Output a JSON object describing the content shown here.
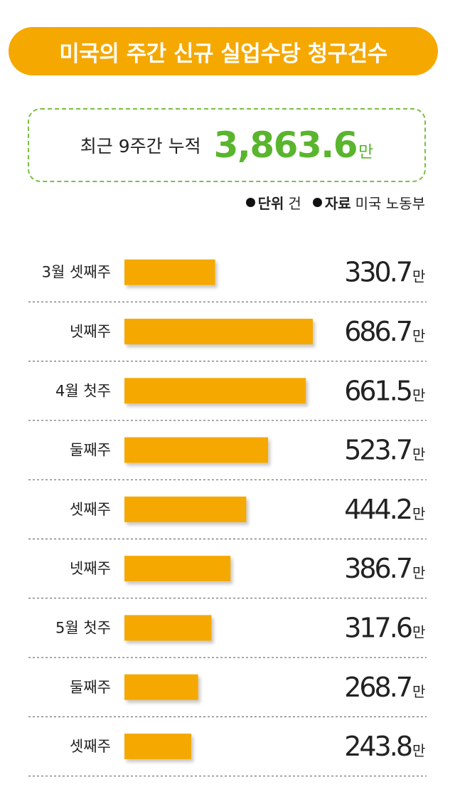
{
  "title": "미국의 주간 신규 실업수당 청구건수",
  "summary": {
    "label": "최근 9주간 누적",
    "value": "3,863.6",
    "unit": "만"
  },
  "meta": {
    "unit_key": "단위",
    "unit_value": "건",
    "source_key": "자료",
    "source_value": "미국 노동부"
  },
  "colors": {
    "accent": "#f5a800",
    "summary_green": "#5ab52e",
    "divider": "#555555"
  },
  "chart_data": {
    "type": "bar",
    "orientation": "horizontal",
    "categories": [
      "3월 셋째주",
      "넷째주",
      "4월 첫주",
      "둘째주",
      "셋째주",
      "넷째주",
      "5월 첫주",
      "둘째주",
      "셋째주"
    ],
    "values": [
      330.7,
      686.7,
      661.5,
      523.7,
      444.2,
      386.7,
      317.6,
      268.7,
      243.8
    ],
    "value_labels": [
      "330.7",
      "686.7",
      "661.5",
      "523.7",
      "444.2",
      "386.7",
      "317.6",
      "268.7",
      "243.8"
    ],
    "value_unit": "만",
    "xlim": [
      0,
      686.7
    ],
    "grid": false
  }
}
